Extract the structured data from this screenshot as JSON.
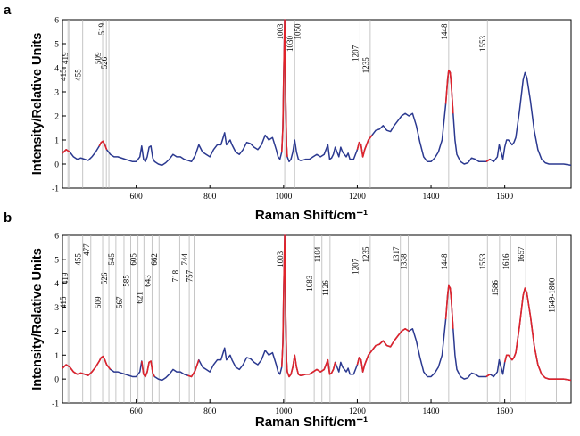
{
  "chart_data": [
    {
      "panel": "a",
      "type": "line",
      "xlabel": "Raman Shift/cm⁻¹",
      "ylabel": "Intensity/Relative Units",
      "xlim": [
        400,
        1780
      ],
      "ylim": [
        -1,
        6
      ],
      "xticks": [
        600,
        800,
        1000,
        1200,
        1400,
        1600
      ],
      "yticks": [
        -1,
        0,
        1,
        2,
        3,
        4,
        5,
        6
      ],
      "colors": {
        "spectrum": "#2b3990",
        "highlight": "#e0242b",
        "marker": "#b8b8b8"
      },
      "marked_peaks": [
        {
          "label": "415",
          "x": 415,
          "level": 3.7
        },
        {
          "label": "419",
          "x": 419,
          "level": 4.4
        },
        {
          "label": "455",
          "x": 455,
          "level": 3.7
        },
        {
          "label": "509",
          "x": 509,
          "level": 4.4
        },
        {
          "label": "519",
          "x": 519,
          "level": 5.6
        },
        {
          "label": "526",
          "x": 526,
          "level": 4.2
        },
        {
          "label": "1003",
          "x": 1003,
          "level": 5.5
        },
        {
          "label": "1030",
          "x": 1030,
          "level": 5.0
        },
        {
          "label": "1050",
          "x": 1050,
          "level": 5.5
        },
        {
          "label": "1207",
          "x": 1207,
          "level": 4.6
        },
        {
          "label": "1235",
          "x": 1235,
          "level": 4.1
        },
        {
          "label": "1448",
          "x": 1448,
          "level": 5.5
        },
        {
          "label": "1553",
          "x": 1553,
          "level": 5.0
        }
      ],
      "highlight_ranges": [
        [
          400,
          425
        ],
        [
          495,
          520
        ],
        [
          995,
          1012
        ],
        [
          1198,
          1240
        ],
        [
          1432,
          1462
        ],
        [
          1545,
          1560
        ]
      ],
      "series": [
        {
          "x": [
            400,
            410,
            420,
            430,
            440,
            450,
            460,
            470,
            480,
            490,
            500,
            505,
            510,
            515,
            520,
            530,
            540,
            550,
            560,
            570,
            580,
            590,
            600,
            610,
            615,
            620,
            625,
            630,
            635,
            640,
            645,
            650,
            660,
            670,
            680,
            690,
            700,
            710,
            720,
            730,
            740,
            750,
            760,
            770,
            780,
            790,
            800,
            810,
            820,
            830,
            840,
            845,
            850,
            855,
            860,
            870,
            880,
            890,
            900,
            910,
            920,
            930,
            940,
            950,
            960,
            970,
            980,
            985,
            990,
            995,
            998,
            1000,
            1003,
            1006,
            1008,
            1010,
            1015,
            1020,
            1025,
            1030,
            1035,
            1040,
            1045,
            1050,
            1060,
            1070,
            1080,
            1090,
            1100,
            1110,
            1120,
            1125,
            1130,
            1135,
            1140,
            1150,
            1155,
            1160,
            1170,
            1175,
            1180,
            1190,
            1200,
            1205,
            1210,
            1215,
            1220,
            1230,
            1240,
            1250,
            1260,
            1270,
            1280,
            1290,
            1300,
            1310,
            1320,
            1330,
            1340,
            1350,
            1360,
            1370,
            1380,
            1390,
            1400,
            1410,
            1420,
            1430,
            1440,
            1445,
            1448,
            1452,
            1455,
            1460,
            1465,
            1470,
            1480,
            1490,
            1500,
            1510,
            1520,
            1530,
            1540,
            1550,
            1560,
            1570,
            1580,
            1585,
            1590,
            1595,
            1600,
            1605,
            1610,
            1615,
            1620,
            1625,
            1630,
            1640,
            1650,
            1655,
            1660,
            1670,
            1680,
            1690,
            1700,
            1710,
            1720,
            1740,
            1760,
            1780
          ],
          "y": [
            0.45,
            0.6,
            0.5,
            0.3,
            0.2,
            0.25,
            0.2,
            0.15,
            0.3,
            0.5,
            0.75,
            0.9,
            0.95,
            0.8,
            0.6,
            0.4,
            0.3,
            0.3,
            0.25,
            0.2,
            0.15,
            0.1,
            0.1,
            0.3,
            0.75,
            0.2,
            0.1,
            0.3,
            0.7,
            0.75,
            0.25,
            0.1,
            0.0,
            -0.05,
            0.05,
            0.2,
            0.4,
            0.3,
            0.3,
            0.2,
            0.15,
            0.1,
            0.35,
            0.8,
            0.5,
            0.4,
            0.3,
            0.6,
            0.8,
            0.8,
            1.3,
            0.8,
            0.9,
            1.0,
            0.8,
            0.5,
            0.4,
            0.6,
            0.9,
            0.85,
            0.7,
            0.6,
            0.8,
            1.2,
            1.0,
            1.1,
            0.6,
            0.3,
            0.2,
            0.5,
            1.5,
            3.5,
            6.0,
            2.5,
            0.8,
            0.3,
            0.1,
            0.2,
            0.5,
            1.0,
            0.5,
            0.2,
            0.15,
            0.15,
            0.2,
            0.2,
            0.3,
            0.4,
            0.3,
            0.4,
            0.8,
            0.2,
            0.25,
            0.4,
            0.7,
            0.3,
            0.7,
            0.5,
            0.3,
            0.45,
            0.2,
            0.2,
            0.6,
            0.9,
            0.8,
            0.3,
            0.6,
            1.0,
            1.2,
            1.4,
            1.45,
            1.6,
            1.4,
            1.35,
            1.6,
            1.8,
            2.0,
            2.1,
            2.0,
            2.1,
            1.6,
            0.9,
            0.3,
            0.1,
            0.1,
            0.25,
            0.5,
            1.0,
            2.5,
            3.5,
            3.9,
            3.8,
            3.3,
            2.1,
            1.0,
            0.4,
            0.1,
            0.0,
            0.05,
            0.25,
            0.2,
            0.1,
            0.1,
            0.1,
            0.2,
            0.1,
            0.3,
            0.8,
            0.5,
            0.2,
            0.7,
            1.0,
            1.0,
            0.9,
            0.8,
            0.9,
            1.1,
            2.2,
            3.5,
            3.8,
            3.6,
            2.6,
            1.4,
            0.6,
            0.2,
            0.05,
            0.0,
            0.0,
            0.0,
            -0.05
          ]
        }
      ]
    },
    {
      "panel": "b",
      "type": "line",
      "xlabel": "Raman Shift/cm⁻¹",
      "ylabel": "Intensity/Relative Units",
      "xlim": [
        400,
        1780
      ],
      "ylim": [
        -1,
        6
      ],
      "xticks": [
        600,
        800,
        1000,
        1200,
        1400,
        1600
      ],
      "yticks": [
        -1,
        0,
        1,
        2,
        3,
        4,
        5,
        6
      ],
      "colors": {
        "spectrum": "#2b3990",
        "highlight": "#e0242b",
        "marker": "#b8b8b8"
      },
      "marked_peaks": [
        {
          "label": "415",
          "x": 415,
          "level": 3.2
        },
        {
          "label": "419",
          "x": 419,
          "level": 4.2
        },
        {
          "label": "455",
          "x": 455,
          "level": 5.0
        },
        {
          "label": "477",
          "x": 477,
          "level": 5.4
        },
        {
          "label": "509",
          "x": 509,
          "level": 3.2
        },
        {
          "label": "526",
          "x": 526,
          "level": 4.2
        },
        {
          "label": "545",
          "x": 545,
          "level": 5.0
        },
        {
          "label": "567",
          "x": 567,
          "level": 3.2
        },
        {
          "label": "585",
          "x": 585,
          "level": 4.1
        },
        {
          "label": "605",
          "x": 605,
          "level": 5.0
        },
        {
          "label": "621",
          "x": 621,
          "level": 3.4
        },
        {
          "label": "643",
          "x": 643,
          "level": 4.1
        },
        {
          "label": "662",
          "x": 662,
          "level": 5.0
        },
        {
          "label": "718",
          "x": 718,
          "level": 4.3
        },
        {
          "label": "744",
          "x": 744,
          "level": 5.0
        },
        {
          "label": "757",
          "x": 757,
          "level": 4.3
        },
        {
          "label": "1003",
          "x": 1003,
          "level": 5.0
        },
        {
          "label": "1083",
          "x": 1083,
          "level": 4.0
        },
        {
          "label": "1104",
          "x": 1104,
          "level": 5.2
        },
        {
          "label": "1126",
          "x": 1126,
          "level": 3.8
        },
        {
          "label": "1207",
          "x": 1207,
          "level": 4.7
        },
        {
          "label": "1235",
          "x": 1235,
          "level": 5.2
        },
        {
          "label": "1317",
          "x": 1317,
          "level": 5.2
        },
        {
          "label": "1338",
          "x": 1338,
          "level": 4.9
        },
        {
          "label": "1448",
          "x": 1448,
          "level": 4.9
        },
        {
          "label": "1553",
          "x": 1553,
          "level": 4.9
        },
        {
          "label": "1586",
          "x": 1586,
          "level": 3.8
        },
        {
          "label": "1616",
          "x": 1616,
          "level": 4.9
        },
        {
          "label": "1657",
          "x": 1657,
          "level": 5.2
        },
        {
          "label": "1649-1800",
          "x": 1740,
          "level": 3.5
        }
      ],
      "highlight_ranges": [
        [
          400,
          530
        ],
        [
          615,
          650
        ],
        [
          740,
          770
        ],
        [
          995,
          1140
        ],
        [
          1195,
          1345
        ],
        [
          1432,
          1462
        ],
        [
          1545,
          1560
        ],
        [
          1600,
          1780
        ]
      ],
      "series": [
        {
          "x": [
            400,
            410,
            420,
            430,
            440,
            450,
            460,
            470,
            480,
            490,
            500,
            505,
            510,
            515,
            520,
            530,
            540,
            550,
            560,
            570,
            580,
            590,
            600,
            610,
            615,
            620,
            625,
            630,
            635,
            640,
            645,
            650,
            660,
            670,
            680,
            690,
            700,
            710,
            720,
            730,
            740,
            750,
            760,
            770,
            780,
            790,
            800,
            810,
            820,
            830,
            840,
            845,
            850,
            855,
            860,
            870,
            880,
            890,
            900,
            910,
            920,
            930,
            940,
            950,
            960,
            970,
            980,
            985,
            990,
            995,
            998,
            1000,
            1003,
            1006,
            1008,
            1010,
            1015,
            1020,
            1025,
            1030,
            1035,
            1040,
            1045,
            1050,
            1060,
            1070,
            1080,
            1090,
            1100,
            1110,
            1120,
            1125,
            1130,
            1135,
            1140,
            1150,
            1155,
            1160,
            1170,
            1175,
            1180,
            1190,
            1200,
            1205,
            1210,
            1215,
            1220,
            1230,
            1240,
            1250,
            1260,
            1270,
            1280,
            1290,
            1300,
            1310,
            1320,
            1330,
            1340,
            1350,
            1360,
            1370,
            1380,
            1390,
            1400,
            1410,
            1420,
            1430,
            1440,
            1445,
            1448,
            1452,
            1455,
            1460,
            1465,
            1470,
            1480,
            1490,
            1500,
            1510,
            1520,
            1530,
            1540,
            1550,
            1560,
            1570,
            1580,
            1585,
            1590,
            1595,
            1600,
            1605,
            1610,
            1615,
            1620,
            1625,
            1630,
            1640,
            1650,
            1655,
            1660,
            1670,
            1680,
            1690,
            1700,
            1710,
            1720,
            1740,
            1760,
            1780
          ],
          "y": [
            0.45,
            0.6,
            0.5,
            0.3,
            0.2,
            0.25,
            0.2,
            0.15,
            0.3,
            0.5,
            0.75,
            0.9,
            0.95,
            0.8,
            0.6,
            0.4,
            0.3,
            0.3,
            0.25,
            0.2,
            0.15,
            0.1,
            0.1,
            0.3,
            0.75,
            0.2,
            0.1,
            0.3,
            0.7,
            0.75,
            0.25,
            0.1,
            0.0,
            -0.05,
            0.05,
            0.2,
            0.4,
            0.3,
            0.3,
            0.2,
            0.15,
            0.1,
            0.35,
            0.8,
            0.5,
            0.4,
            0.3,
            0.6,
            0.8,
            0.8,
            1.3,
            0.8,
            0.9,
            1.0,
            0.8,
            0.5,
            0.4,
            0.6,
            0.9,
            0.85,
            0.7,
            0.6,
            0.8,
            1.2,
            1.0,
            1.1,
            0.6,
            0.3,
            0.2,
            0.5,
            1.5,
            3.5,
            6.0,
            2.5,
            0.8,
            0.3,
            0.1,
            0.2,
            0.5,
            1.0,
            0.5,
            0.2,
            0.15,
            0.15,
            0.2,
            0.2,
            0.3,
            0.4,
            0.3,
            0.4,
            0.8,
            0.2,
            0.25,
            0.4,
            0.7,
            0.3,
            0.7,
            0.5,
            0.3,
            0.45,
            0.2,
            0.2,
            0.6,
            0.9,
            0.8,
            0.3,
            0.6,
            1.0,
            1.2,
            1.4,
            1.45,
            1.6,
            1.4,
            1.35,
            1.6,
            1.8,
            2.0,
            2.1,
            2.0,
            2.1,
            1.6,
            0.9,
            0.3,
            0.1,
            0.1,
            0.25,
            0.5,
            1.0,
            2.5,
            3.5,
            3.9,
            3.8,
            3.3,
            2.1,
            1.0,
            0.4,
            0.1,
            0.0,
            0.05,
            0.25,
            0.2,
            0.1,
            0.1,
            0.1,
            0.2,
            0.1,
            0.3,
            0.8,
            0.5,
            0.2,
            0.7,
            1.0,
            1.0,
            0.9,
            0.8,
            0.9,
            1.1,
            2.2,
            3.5,
            3.8,
            3.6,
            2.6,
            1.4,
            0.6,
            0.2,
            0.05,
            0.0,
            0.0,
            0.0,
            -0.05
          ]
        }
      ]
    }
  ]
}
